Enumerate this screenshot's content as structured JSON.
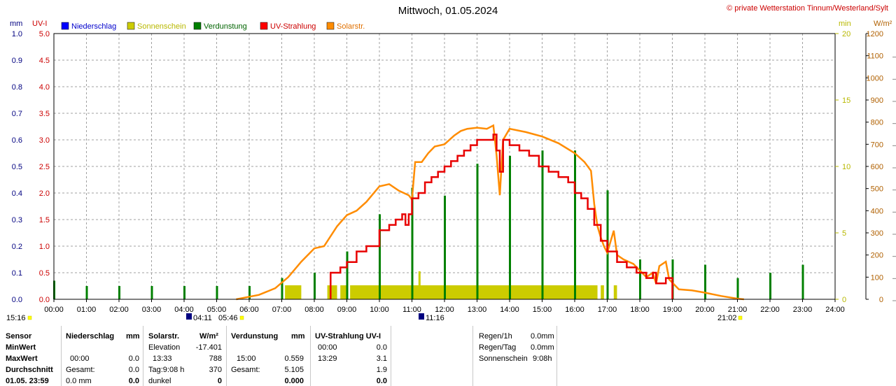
{
  "header": {
    "title": "Mittwoch, 01.05.2024",
    "copyright": "© private Wetterstation Tinnum/Westerland/Sylt"
  },
  "axes": {
    "mm_label": "mm",
    "uvi_label": "UV-I",
    "min_label": "min",
    "wm2_label": "W/m²",
    "mm_ticks": [
      "0.0",
      "0.1",
      "0.2",
      "0.3",
      "0.4",
      "0.5",
      "0.6",
      "0.7",
      "0.8",
      "0.9",
      "1.0"
    ],
    "uvi_ticks": [
      "0.0",
      "0.5",
      "1.0",
      "1.5",
      "2.0",
      "2.5",
      "3.0",
      "3.5",
      "4.0",
      "4.5",
      "5.0"
    ],
    "min_ticks": [
      "0",
      "5",
      "10",
      "15",
      "20"
    ],
    "wm2_ticks": [
      "0",
      "100",
      "200",
      "300",
      "400",
      "500",
      "600",
      "700",
      "800",
      "900",
      "1000",
      "1100",
      "1200"
    ],
    "x_ticks": [
      "00:00",
      "01:00",
      "02:00",
      "03:00",
      "04:00",
      "05:00",
      "06:00",
      "07:00",
      "08:00",
      "09:00",
      "10:00",
      "11:00",
      "12:00",
      "13:00",
      "14:00",
      "15:00",
      "16:00",
      "17:00",
      "18:00",
      "19:00",
      "20:00",
      "21:00",
      "22:00",
      "23:00",
      "24:00"
    ]
  },
  "markers": {
    "left": "15:16",
    "dawn": "04:11",
    "sunrise": "05:46",
    "noon": "11:16",
    "sunset": "21:02"
  },
  "colors": {
    "rain": "#0000ff",
    "sun": "#cccc00",
    "evap": "#008000",
    "uv": "#ff0000",
    "solar": "#ff8c00",
    "grid": "#a0a0a0"
  },
  "chart_data": {
    "type": "line",
    "x_unit": "hour",
    "xlim": [
      0,
      24
    ],
    "legend": [
      "Niederschlag",
      "Sonnenschein",
      "Verdunstung",
      "UV-Strahlung",
      "Solarstr."
    ],
    "legend_placement": "top-left",
    "grid": true,
    "ylim_mm": [
      0,
      1.0
    ],
    "ylim_uvi": [
      0,
      5.0
    ],
    "ylim_min": [
      0,
      20
    ],
    "ylim_wm2": [
      0,
      1200
    ],
    "solar_wm2": [
      [
        5.6,
        0
      ],
      [
        6.3,
        20
      ],
      [
        6.8,
        50
      ],
      [
        7.2,
        100
      ],
      [
        7.6,
        170
      ],
      [
        8.0,
        230
      ],
      [
        8.3,
        240
      ],
      [
        8.7,
        330
      ],
      [
        9.0,
        380
      ],
      [
        9.3,
        400
      ],
      [
        9.6,
        440
      ],
      [
        10.0,
        510
      ],
      [
        10.3,
        520
      ],
      [
        10.6,
        490
      ],
      [
        10.9,
        470
      ],
      [
        11.0,
        450
      ],
      [
        11.1,
        620
      ],
      [
        11.3,
        620
      ],
      [
        11.5,
        660
      ],
      [
        11.7,
        690
      ],
      [
        12.0,
        700
      ],
      [
        12.3,
        740
      ],
      [
        12.5,
        760
      ],
      [
        12.7,
        770
      ],
      [
        13.0,
        775
      ],
      [
        13.3,
        770
      ],
      [
        13.5,
        785
      ],
      [
        13.6,
        650
      ],
      [
        13.7,
        470
      ],
      [
        13.8,
        720
      ],
      [
        14.0,
        770
      ],
      [
        14.5,
        755
      ],
      [
        15.0,
        735
      ],
      [
        15.5,
        705
      ],
      [
        16.0,
        660
      ],
      [
        16.3,
        620
      ],
      [
        16.5,
        580
      ],
      [
        16.6,
        430
      ],
      [
        16.7,
        330
      ],
      [
        16.8,
        280
      ],
      [
        16.9,
        240
      ],
      [
        17.0,
        210
      ],
      [
        17.2,
        310
      ],
      [
        17.3,
        200
      ],
      [
        17.5,
        180
      ],
      [
        17.8,
        160
      ],
      [
        18.0,
        130
      ],
      [
        18.2,
        100
      ],
      [
        18.4,
        120
      ],
      [
        18.5,
        70
      ],
      [
        18.6,
        150
      ],
      [
        18.8,
        170
      ],
      [
        18.9,
        90
      ],
      [
        19.2,
        45
      ],
      [
        19.6,
        40
      ],
      [
        20.0,
        30
      ],
      [
        20.5,
        15
      ],
      [
        21.0,
        3
      ],
      [
        21.2,
        0
      ]
    ],
    "uv_index": [
      [
        8.5,
        0
      ],
      [
        8.5,
        0.5
      ],
      [
        8.8,
        0.5
      ],
      [
        8.8,
        0.6
      ],
      [
        9.0,
        0.7
      ],
      [
        9.3,
        0.9
      ],
      [
        9.6,
        1.0
      ],
      [
        10.0,
        1.3
      ],
      [
        10.3,
        1.4
      ],
      [
        10.5,
        1.5
      ],
      [
        10.7,
        1.6
      ],
      [
        10.8,
        1.4
      ],
      [
        10.9,
        1.6
      ],
      [
        11.0,
        1.9
      ],
      [
        11.2,
        2.0
      ],
      [
        11.4,
        2.2
      ],
      [
        11.6,
        2.3
      ],
      [
        11.8,
        2.4
      ],
      [
        12.0,
        2.5
      ],
      [
        12.2,
        2.6
      ],
      [
        12.4,
        2.7
      ],
      [
        12.6,
        2.8
      ],
      [
        12.8,
        2.9
      ],
      [
        13.0,
        3.0
      ],
      [
        13.3,
        3.0
      ],
      [
        13.5,
        3.1
      ],
      [
        13.6,
        2.8
      ],
      [
        13.7,
        2.4
      ],
      [
        13.8,
        3.0
      ],
      [
        14.0,
        2.9
      ],
      [
        14.3,
        2.8
      ],
      [
        14.6,
        2.7
      ],
      [
        14.9,
        2.5
      ],
      [
        15.2,
        2.4
      ],
      [
        15.5,
        2.3
      ],
      [
        15.8,
        2.2
      ],
      [
        16.0,
        2.0
      ],
      [
        16.2,
        1.9
      ],
      [
        16.4,
        1.7
      ],
      [
        16.6,
        1.4
      ],
      [
        16.8,
        1.1
      ],
      [
        17.0,
        0.9
      ],
      [
        17.3,
        0.7
      ],
      [
        17.6,
        0.6
      ],
      [
        17.9,
        0.5
      ],
      [
        18.2,
        0.4
      ],
      [
        18.4,
        0.5
      ],
      [
        18.5,
        0.3
      ],
      [
        18.8,
        0.4
      ],
      [
        19.0,
        0.4
      ],
      [
        19.0,
        0
      ]
    ],
    "evaporation_mm": [
      [
        0.0,
        0.07
      ],
      [
        1.0,
        0.05
      ],
      [
        2.0,
        0.05
      ],
      [
        3.0,
        0.05
      ],
      [
        4.0,
        0.05
      ],
      [
        5.0,
        0.05
      ],
      [
        6.0,
        0.05
      ],
      [
        7.0,
        0.08
      ],
      [
        8.0,
        0.1
      ],
      [
        9.0,
        0.18
      ],
      [
        10.0,
        0.32
      ],
      [
        11.0,
        0.42
      ],
      [
        12.0,
        0.39
      ],
      [
        13.0,
        0.51
      ],
      [
        14.0,
        0.54
      ],
      [
        15.0,
        0.56
      ],
      [
        16.0,
        0.56
      ],
      [
        17.0,
        0.41
      ],
      [
        18.0,
        0.15
      ],
      [
        19.0,
        0.15
      ],
      [
        20.0,
        0.13
      ],
      [
        21.0,
        0.08
      ],
      [
        22.0,
        0.1
      ],
      [
        23.0,
        0.13
      ]
    ],
    "sunshine_segments": [
      [
        7.1,
        7.6
      ],
      [
        8.4,
        8.7
      ],
      [
        8.8,
        9.0
      ],
      [
        9.1,
        16.7
      ],
      [
        16.8,
        16.9
      ],
      [
        17.2,
        17.3
      ]
    ],
    "precipitation_mm": []
  },
  "table": {
    "headers": {
      "sensor": "Sensor",
      "rain": "Niederschlag",
      "rain_unit": "mm",
      "solar": "Solarstr.",
      "solar_unit": "W/m²",
      "evap": "Verdunstung",
      "evap_unit": "mm",
      "uv": "UV-Strahlung UV-I"
    },
    "rows": [
      {
        "label": "MinWert",
        "rain_time": "",
        "rain_val": "",
        "solar_time": "Elevation",
        "solar_val": "-17.401",
        "evap_time": "",
        "evap_val": "",
        "uv_time": "00:00",
        "uv_val": "0.0"
      },
      {
        "label": "MaxWert",
        "rain_time": "00:00",
        "rain_val": "0.0",
        "solar_time": "13:33",
        "solar_val": "788",
        "evap_time": "15:00",
        "evap_val": "0.559",
        "uv_time": "13:29",
        "uv_val": "3.1"
      },
      {
        "label": "Durchschnitt",
        "rain_time": "Gesamt:",
        "rain_val": "0.0",
        "solar_time": "Tag:9:08 h",
        "solar_val": "370",
        "evap_time": "Gesamt:",
        "evap_val": "5.105",
        "uv_time": "",
        "uv_val": "1.9"
      },
      {
        "label": "01.05. 23:59",
        "rain_time": "0.0 mm",
        "rain_val": "0.0",
        "solar_time": "dunkel",
        "solar_val": "0",
        "evap_time": "",
        "evap_val": "0.000",
        "uv_time": "",
        "uv_val": "0.0"
      }
    ],
    "summary": [
      {
        "label": "Regen/1h",
        "value": "0.0mm"
      },
      {
        "label": "Regen/Tag",
        "value": "0.0mm"
      },
      {
        "label": "Sonnenschein",
        "value": "9:08h"
      }
    ]
  }
}
